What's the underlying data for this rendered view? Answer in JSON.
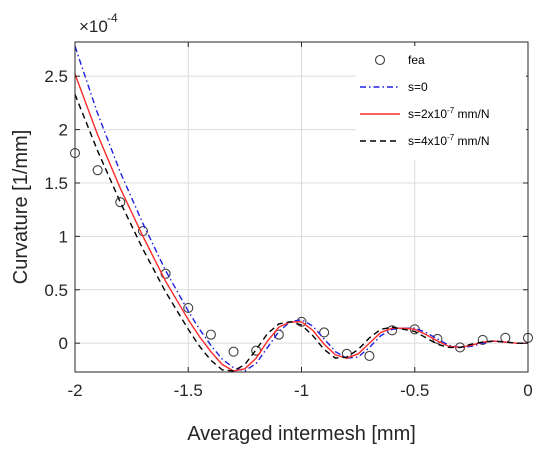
{
  "chart_data": {
    "type": "line",
    "xlabel": "Averaged intermesh [mm]",
    "ylabel": "Curvature [1/mm]",
    "exponent_label": "×10",
    "exponent_value": "-4",
    "y_scale": 0.0001,
    "xlim": [
      -2,
      0
    ],
    "ylim": [
      -0.27,
      2.82
    ],
    "x_ticks": [
      -2,
      -1.5,
      -1,
      -0.5,
      0
    ],
    "x_tick_labels": [
      "-2",
      "-1.5",
      "-1",
      "-0.5",
      "0"
    ],
    "y_ticks": [
      0,
      0.5,
      1,
      1.5,
      2,
      2.5
    ],
    "y_tick_labels": [
      "0",
      "0.5",
      "1",
      "1.5",
      "2",
      "2.5"
    ],
    "grid": true,
    "legend_position": "top-right",
    "series": [
      {
        "name": "fea",
        "style": "marker",
        "color": "#404040",
        "x": [
          -2.0,
          -1.9,
          -1.8,
          -1.7,
          -1.6,
          -1.5,
          -1.4,
          -1.3,
          -1.2,
          -1.1,
          -1.0,
          -0.9,
          -0.8,
          -0.7,
          -0.6,
          -0.5,
          -0.4,
          -0.3,
          -0.2,
          -0.1,
          0.0
        ],
        "y": [
          1.78,
          1.62,
          1.32,
          1.05,
          0.65,
          0.33,
          0.08,
          -0.08,
          -0.07,
          0.08,
          0.2,
          0.1,
          -0.1,
          -0.12,
          0.12,
          0.13,
          0.04,
          -0.04,
          0.03,
          0.05,
          0.05
        ]
      },
      {
        "name": "s=0",
        "style": "dashdot",
        "color": "#1f1fe0",
        "x": [
          -2.0,
          -1.9,
          -1.8,
          -1.7,
          -1.6,
          -1.5,
          -1.45,
          -1.4,
          -1.35,
          -1.3,
          -1.25,
          -1.2,
          -1.15,
          -1.1,
          -1.05,
          -1.0,
          -0.95,
          -0.9,
          -0.85,
          -0.8,
          -0.75,
          -0.7,
          -0.65,
          -0.6,
          -0.55,
          -0.5,
          -0.45,
          -0.4,
          -0.35,
          -0.3,
          -0.25,
          -0.2,
          -0.15,
          -0.1,
          -0.05,
          0.0
        ],
        "y": [
          2.78,
          2.15,
          1.6,
          1.12,
          0.68,
          0.3,
          0.13,
          -0.02,
          -0.15,
          -0.23,
          -0.26,
          -0.19,
          -0.04,
          0.11,
          0.2,
          0.22,
          0.16,
          0.04,
          -0.08,
          -0.14,
          -0.13,
          -0.04,
          0.07,
          0.13,
          0.14,
          0.14,
          0.1,
          0.04,
          -0.02,
          -0.04,
          -0.03,
          0.0,
          0.02,
          0.01,
          0.0,
          0.0
        ]
      },
      {
        "name": "s=2x10",
        "name_exp": "-7",
        "name_unit": " mm/N",
        "style": "solid",
        "color": "#ff2a2a",
        "x": [
          -2.0,
          -1.9,
          -1.8,
          -1.7,
          -1.6,
          -1.5,
          -1.45,
          -1.4,
          -1.35,
          -1.3,
          -1.25,
          -1.2,
          -1.15,
          -1.1,
          -1.05,
          -1.0,
          -0.95,
          -0.9,
          -0.85,
          -0.8,
          -0.75,
          -0.7,
          -0.65,
          -0.6,
          -0.55,
          -0.5,
          -0.45,
          -0.4,
          -0.35,
          -0.3,
          -0.25,
          -0.2,
          -0.15,
          -0.1,
          -0.05,
          0.0
        ],
        "y": [
          2.52,
          1.95,
          1.45,
          1.0,
          0.58,
          0.22,
          0.06,
          -0.08,
          -0.2,
          -0.26,
          -0.24,
          -0.14,
          0.02,
          0.15,
          0.2,
          0.2,
          0.12,
          -0.01,
          -0.11,
          -0.14,
          -0.1,
          0.0,
          0.1,
          0.14,
          0.14,
          0.13,
          0.08,
          0.02,
          -0.03,
          -0.04,
          -0.02,
          0.01,
          0.02,
          0.01,
          0.0,
          0.0
        ]
      },
      {
        "name": "s=4x10",
        "name_exp": "-7",
        "name_unit": " mm/N",
        "style": "dashed",
        "color": "#000000",
        "x": [
          -2.0,
          -1.9,
          -1.8,
          -1.7,
          -1.6,
          -1.5,
          -1.45,
          -1.4,
          -1.35,
          -1.3,
          -1.25,
          -1.2,
          -1.15,
          -1.1,
          -1.05,
          -1.0,
          -0.95,
          -0.9,
          -0.85,
          -0.8,
          -0.75,
          -0.7,
          -0.65,
          -0.6,
          -0.55,
          -0.5,
          -0.45,
          -0.4,
          -0.35,
          -0.3,
          -0.25,
          -0.2,
          -0.15,
          -0.1,
          -0.05,
          0.0
        ],
        "y": [
          2.33,
          1.8,
          1.32,
          0.88,
          0.48,
          0.13,
          -0.03,
          -0.16,
          -0.25,
          -0.26,
          -0.2,
          -0.06,
          0.09,
          0.18,
          0.2,
          0.17,
          0.07,
          -0.06,
          -0.14,
          -0.13,
          -0.06,
          0.05,
          0.13,
          0.15,
          0.13,
          0.11,
          0.05,
          -0.01,
          -0.04,
          -0.04,
          -0.01,
          0.01,
          0.02,
          0.01,
          0.0,
          0.0
        ]
      }
    ]
  }
}
